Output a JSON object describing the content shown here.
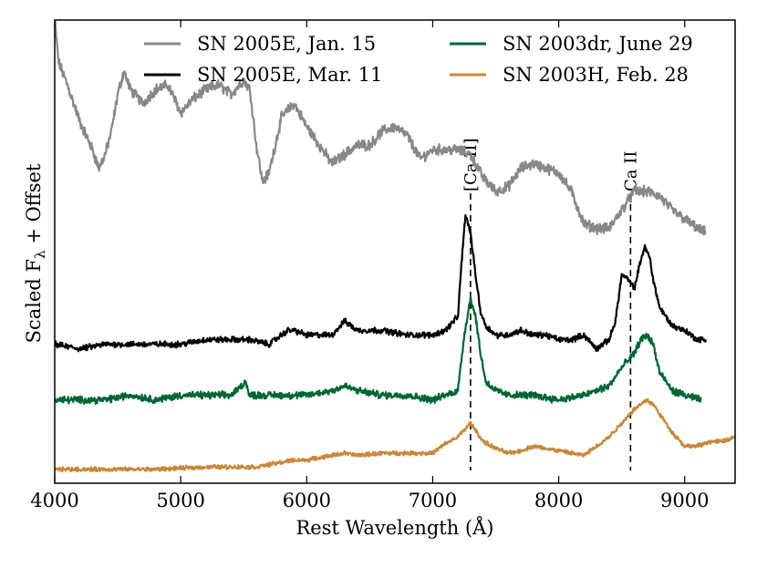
{
  "chart_data": {
    "type": "line",
    "title": "",
    "xlabel": "Rest Wavelength (Å)",
    "ylabel": "Scaled F_λ + Offset",
    "ylabel_main": "Scaled F",
    "ylabel_sub": "λ",
    "ylabel_tail": " + Offset",
    "xlim": [
      4000,
      9400
    ],
    "ylim": [
      0,
      10
    ],
    "xticks": [
      4000,
      5000,
      6000,
      7000,
      8000,
      9000
    ],
    "xtick_labels": [
      "4000",
      "5000",
      "6000",
      "7000",
      "8000",
      "9000"
    ],
    "yticks_shown": false,
    "grid": false,
    "legend_position": "top",
    "annotations": [
      {
        "label": "[Ca II]",
        "x": 7300
      },
      {
        "label": "Ca II",
        "x": 8570
      }
    ],
    "series": [
      {
        "name": "SN 2005E, Jan. 15",
        "color": "#888888",
        "noise": 0.09,
        "x": [
          4000,
          4030,
          4100,
          4200,
          4300,
          4350,
          4400,
          4450,
          4500,
          4550,
          4600,
          4700,
          4800,
          4900,
          5000,
          5100,
          5200,
          5300,
          5400,
          5500,
          5550,
          5600,
          5650,
          5700,
          5800,
          5900,
          6000,
          6100,
          6200,
          6300,
          6400,
          6500,
          6600,
          6700,
          6800,
          6900,
          7000,
          7100,
          7200,
          7300,
          7400,
          7500,
          7600,
          7700,
          7800,
          7900,
          8000,
          8100,
          8200,
          8300,
          8400,
          8500,
          8600,
          8700,
          8800,
          8900,
          9000,
          9100,
          9170
        ],
        "y": [
          10.0,
          9.1,
          8.6,
          7.8,
          7.2,
          6.8,
          7.1,
          7.6,
          8.4,
          8.9,
          8.5,
          8.2,
          8.5,
          8.6,
          8.0,
          8.3,
          8.5,
          8.6,
          8.4,
          8.7,
          8.5,
          7.3,
          6.5,
          6.7,
          7.9,
          8.2,
          7.7,
          7.3,
          6.9,
          7.1,
          7.3,
          7.3,
          7.6,
          7.7,
          7.5,
          7.0,
          7.2,
          7.2,
          7.2,
          7.1,
          6.6,
          6.3,
          6.4,
          6.8,
          6.9,
          6.8,
          6.7,
          6.3,
          5.6,
          5.5,
          5.5,
          5.9,
          6.3,
          6.3,
          6.2,
          5.9,
          5.7,
          5.5,
          5.4
        ]
      },
      {
        "name": "SN 2005E, Mar. 11",
        "color": "#000000",
        "noise": 0.05,
        "x": [
          4000,
          4200,
          4400,
          4600,
          4800,
          5000,
          5200,
          5400,
          5550,
          5700,
          5850,
          5900,
          6000,
          6100,
          6200,
          6300,
          6400,
          6500,
          6600,
          6800,
          7000,
          7100,
          7200,
          7230,
          7260,
          7300,
          7340,
          7380,
          7420,
          7500,
          7600,
          7700,
          7800,
          7900,
          8000,
          8100,
          8200,
          8300,
          8400,
          8450,
          8500,
          8550,
          8600,
          8650,
          8680,
          8720,
          8750,
          8800,
          8900,
          9000,
          9100,
          9170
        ],
        "y": [
          3.0,
          2.9,
          3.0,
          3.0,
          3.0,
          3.0,
          3.1,
          3.1,
          3.1,
          3.0,
          3.3,
          3.3,
          3.2,
          3.2,
          3.2,
          3.5,
          3.3,
          3.3,
          3.3,
          3.2,
          3.2,
          3.3,
          3.6,
          4.8,
          5.8,
          5.4,
          4.5,
          3.7,
          3.4,
          3.2,
          3.2,
          3.3,
          3.2,
          3.2,
          3.1,
          3.1,
          3.2,
          2.9,
          3.1,
          3.5,
          4.5,
          4.4,
          4.2,
          4.8,
          5.1,
          4.9,
          4.4,
          3.8,
          3.4,
          3.3,
          3.1,
          3.1
        ]
      },
      {
        "name": "SN 2003dr, June 29",
        "color": "#006633",
        "noise": 0.06,
        "x": [
          4000,
          4200,
          4400,
          4600,
          4800,
          5000,
          5200,
          5400,
          5520,
          5540,
          5600,
          5800,
          6000,
          6200,
          6300,
          6400,
          6600,
          6800,
          7000,
          7100,
          7200,
          7250,
          7300,
          7340,
          7380,
          7420,
          7500,
          7600,
          7700,
          7800,
          8000,
          8200,
          8300,
          8400,
          8500,
          8600,
          8650,
          8700,
          8750,
          8800,
          8900,
          9000,
          9130
        ],
        "y": [
          1.8,
          1.8,
          1.8,
          1.9,
          1.8,
          1.9,
          1.9,
          1.9,
          2.2,
          1.9,
          1.9,
          1.9,
          1.9,
          2.0,
          2.1,
          2.0,
          1.9,
          1.9,
          1.8,
          1.9,
          2.0,
          3.2,
          4.0,
          3.6,
          2.8,
          2.2,
          2.0,
          1.9,
          1.9,
          1.9,
          1.8,
          1.9,
          2.0,
          2.1,
          2.5,
          2.8,
          3.1,
          3.2,
          3.0,
          2.4,
          2.0,
          1.9,
          1.8
        ]
      },
      {
        "name": "SN 2003H, Feb. 28",
        "color": "#C8883A",
        "noise": 0.035,
        "x": [
          4000,
          4400,
          4800,
          5200,
          5600,
          5900,
          6000,
          6200,
          6300,
          6400,
          6600,
          6800,
          7000,
          7100,
          7200,
          7300,
          7350,
          7400,
          7500,
          7600,
          7700,
          7800,
          8000,
          8200,
          8300,
          8400,
          8500,
          8600,
          8700,
          8750,
          8800,
          8900,
          9000,
          9100,
          9200,
          9300,
          9400
        ],
        "y": [
          0.3,
          0.3,
          0.3,
          0.35,
          0.35,
          0.5,
          0.5,
          0.6,
          0.65,
          0.6,
          0.65,
          0.65,
          0.65,
          0.85,
          1.0,
          1.3,
          1.1,
          0.9,
          0.75,
          0.65,
          0.7,
          0.8,
          0.7,
          0.6,
          0.8,
          1.0,
          1.3,
          1.6,
          1.8,
          1.7,
          1.5,
          1.1,
          0.8,
          0.8,
          0.9,
          0.9,
          1.0
        ]
      }
    ]
  }
}
